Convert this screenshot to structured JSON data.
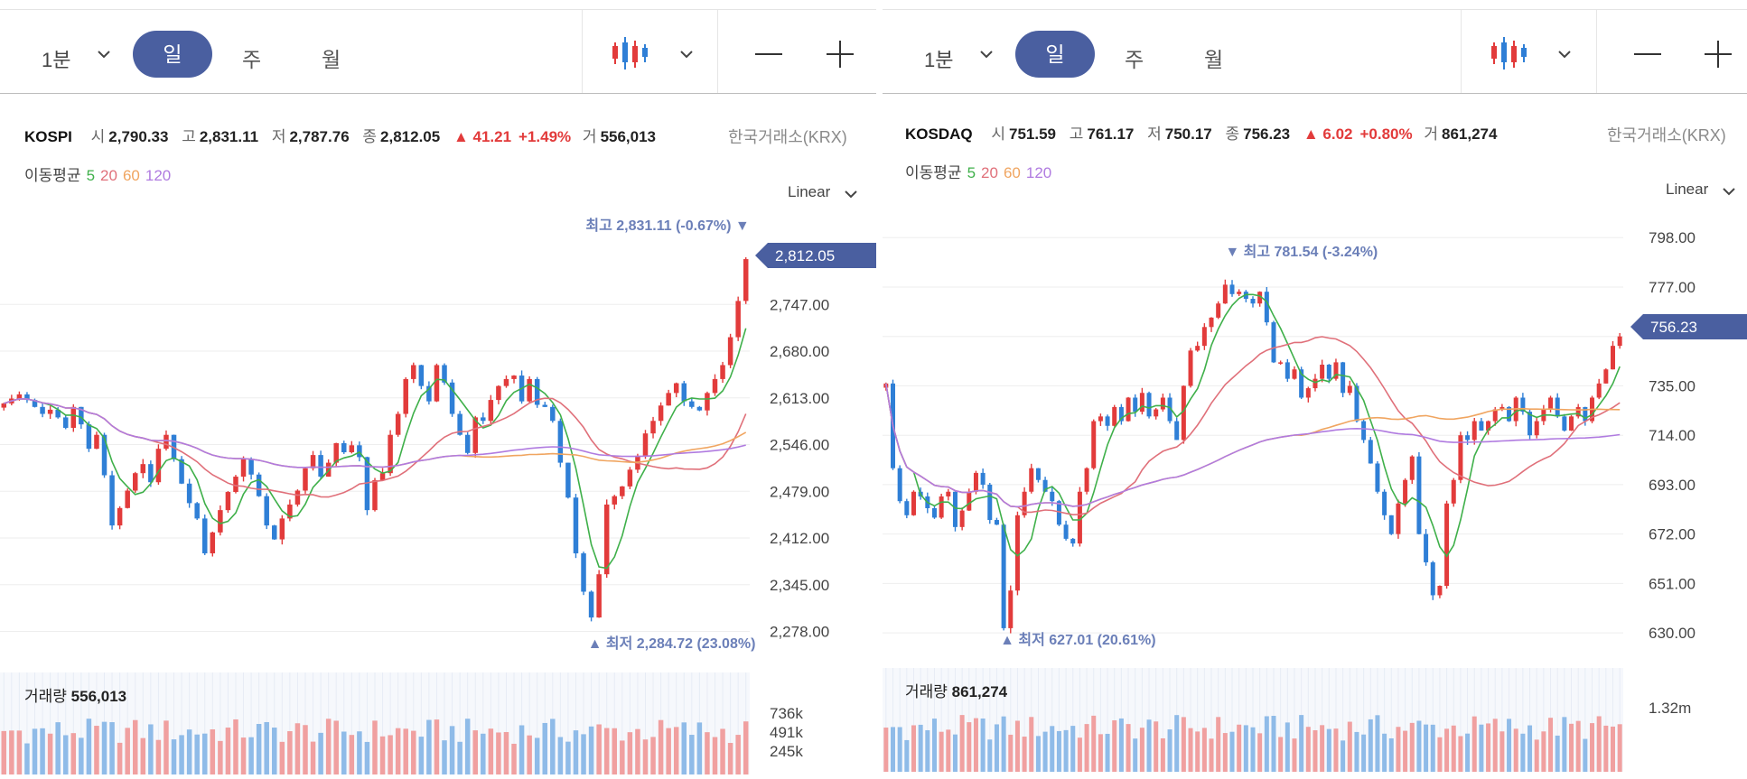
{
  "panels": [
    {
      "toolbar": {
        "interval": "1분",
        "day": "일",
        "week": "주",
        "month": "월"
      },
      "symbol": "KOSPI",
      "quote": {
        "open_label": "시",
        "open": "2,790.33",
        "high_label": "고",
        "high": "2,831.11",
        "low_label": "저",
        "low": "2,787.76",
        "close_label": "종",
        "close": "2,812.05",
        "change": "▲ 41.21",
        "change_pct": "+1.49%",
        "volume_label": "거",
        "volume": "556,013"
      },
      "exchange": "한국거래소(KRX)",
      "ma": {
        "label": "이동평균",
        "periods": [
          "5",
          "20",
          "60",
          "120"
        ]
      },
      "scale": "Linear",
      "annotations": {
        "high": "최고 2,831.11 (-0.67%) ▼",
        "low": "▲ 최저 2,284.72 (23.08%)",
        "last_price": "2,812.05"
      },
      "volume": {
        "label": "거래량",
        "value": "556,013"
      },
      "colors": {
        "up": "#e23b3b",
        "down": "#2f7fd6",
        "ma5": "#3fb04a",
        "ma20": "#e0707a",
        "ma60": "#f0a560",
        "ma120": "#b07be0",
        "tag": "#4a5fa0"
      },
      "chart_data": {
        "type": "candlestick",
        "title": "KOSPI",
        "ylim": [
          2245,
          2860
        ],
        "yticks": [
          2278,
          2345,
          2412,
          2479,
          2546,
          2613,
          2680,
          2747
        ],
        "ytick_labels": [
          "2,278.00",
          "2,345.00",
          "2,412.00",
          "2,479.00",
          "2,546.00",
          "2,613.00",
          "2,680.00",
          "2,747.00"
        ],
        "close": [
          2605,
          2612,
          2618,
          2610,
          2600,
          2590,
          2596,
          2585,
          2570,
          2600,
          2575,
          2540,
          2560,
          2502,
          2430,
          2455,
          2480,
          2505,
          2518,
          2492,
          2540,
          2560,
          2525,
          2490,
          2462,
          2440,
          2390,
          2420,
          2452,
          2478,
          2500,
          2525,
          2503,
          2472,
          2430,
          2410,
          2440,
          2460,
          2480,
          2512,
          2531,
          2500,
          2520,
          2548,
          2535,
          2545,
          2528,
          2452,
          2495,
          2505,
          2560,
          2590,
          2640,
          2660,
          2630,
          2608,
          2660,
          2635,
          2590,
          2560,
          2534,
          2585,
          2580,
          2610,
          2630,
          2640,
          2645,
          2608,
          2640,
          2603,
          2600,
          2580,
          2520,
          2470,
          2390,
          2335,
          2298,
          2360,
          2460,
          2472,
          2486,
          2510,
          2530,
          2562,
          2580,
          2602,
          2620,
          2634,
          2608,
          2600,
          2595,
          2620,
          2640,
          2660,
          2700,
          2752,
          2812
        ],
        "high_value": 2831.11,
        "low_value": 2284.72,
        "last": 2812.05,
        "volume_ticks": [
          "736k",
          "491k",
          "245k"
        ],
        "volume_ylim": [
          0,
          820
        ]
      }
    },
    {
      "toolbar": {
        "interval": "1분",
        "day": "일",
        "week": "주",
        "month": "월"
      },
      "symbol": "KOSDAQ",
      "quote": {
        "open_label": "시",
        "open": "751.59",
        "high_label": "고",
        "high": "761.17",
        "low_label": "저",
        "low": "750.17",
        "close_label": "종",
        "close": "756.23",
        "change": "▲ 6.02",
        "change_pct": "+0.80%",
        "volume_label": "거",
        "volume": "861,274"
      },
      "exchange": "한국거래소(KRX)",
      "ma": {
        "label": "이동평균",
        "periods": [
          "5",
          "20",
          "60",
          "120"
        ]
      },
      "scale": "Linear",
      "annotations": {
        "high": "▼ 최고 781.54 (-3.24%)",
        "low": "▲ 최저 627.01 (20.61%)",
        "last_price": "756.23"
      },
      "volume": {
        "label": "거래량",
        "value": "861,274"
      },
      "colors": {
        "up": "#e23b3b",
        "down": "#2f7fd6",
        "ma5": "#3fb04a",
        "ma20": "#e0707a",
        "ma60": "#f0a560",
        "ma120": "#b07be0",
        "tag": "#4a5fa0"
      },
      "chart_data": {
        "type": "candlestick",
        "title": "KOSDAQ",
        "ylim": [
          622,
          805
        ],
        "yticks": [
          630,
          651,
          672,
          693,
          714,
          735,
          756,
          777,
          798
        ],
        "ytick_labels": [
          "630.00",
          "651.00",
          "672.00",
          "693.00",
          "714.00",
          "735.00",
          "",
          "777.00",
          "798.00"
        ],
        "close": [
          736,
          700,
          686,
          680,
          690,
          688,
          683,
          679,
          688,
          690,
          675,
          682,
          690,
          698,
          693,
          678,
          676,
          632,
          648,
          680,
          690,
          700,
          695,
          690,
          686,
          676,
          670,
          668,
          690,
          700,
          720,
          722,
          718,
          726,
          720,
          730,
          724,
          732,
          722,
          725,
          730,
          720,
          712,
          735,
          750,
          752,
          760,
          764,
          770,
          778,
          774,
          775,
          772,
          770,
          775,
          762,
          745,
          745,
          738,
          742,
          730,
          734,
          738,
          744,
          738,
          745,
          732,
          735,
          720,
          712,
          702,
          690,
          680,
          672,
          685,
          695,
          705,
          672,
          660,
          646,
          650,
          685,
          695,
          714,
          712,
          720,
          716,
          720,
          725,
          726,
          720,
          730,
          724,
          714,
          720,
          725,
          730,
          722,
          716,
          722,
          726,
          720,
          730,
          736,
          742,
          752,
          756
        ],
        "high_value": 781.54,
        "low_value": 627.01,
        "last": 756.23,
        "volume_ticks": [
          "1.32m"
        ],
        "volume_ylim": [
          0,
          1500
        ]
      }
    }
  ]
}
